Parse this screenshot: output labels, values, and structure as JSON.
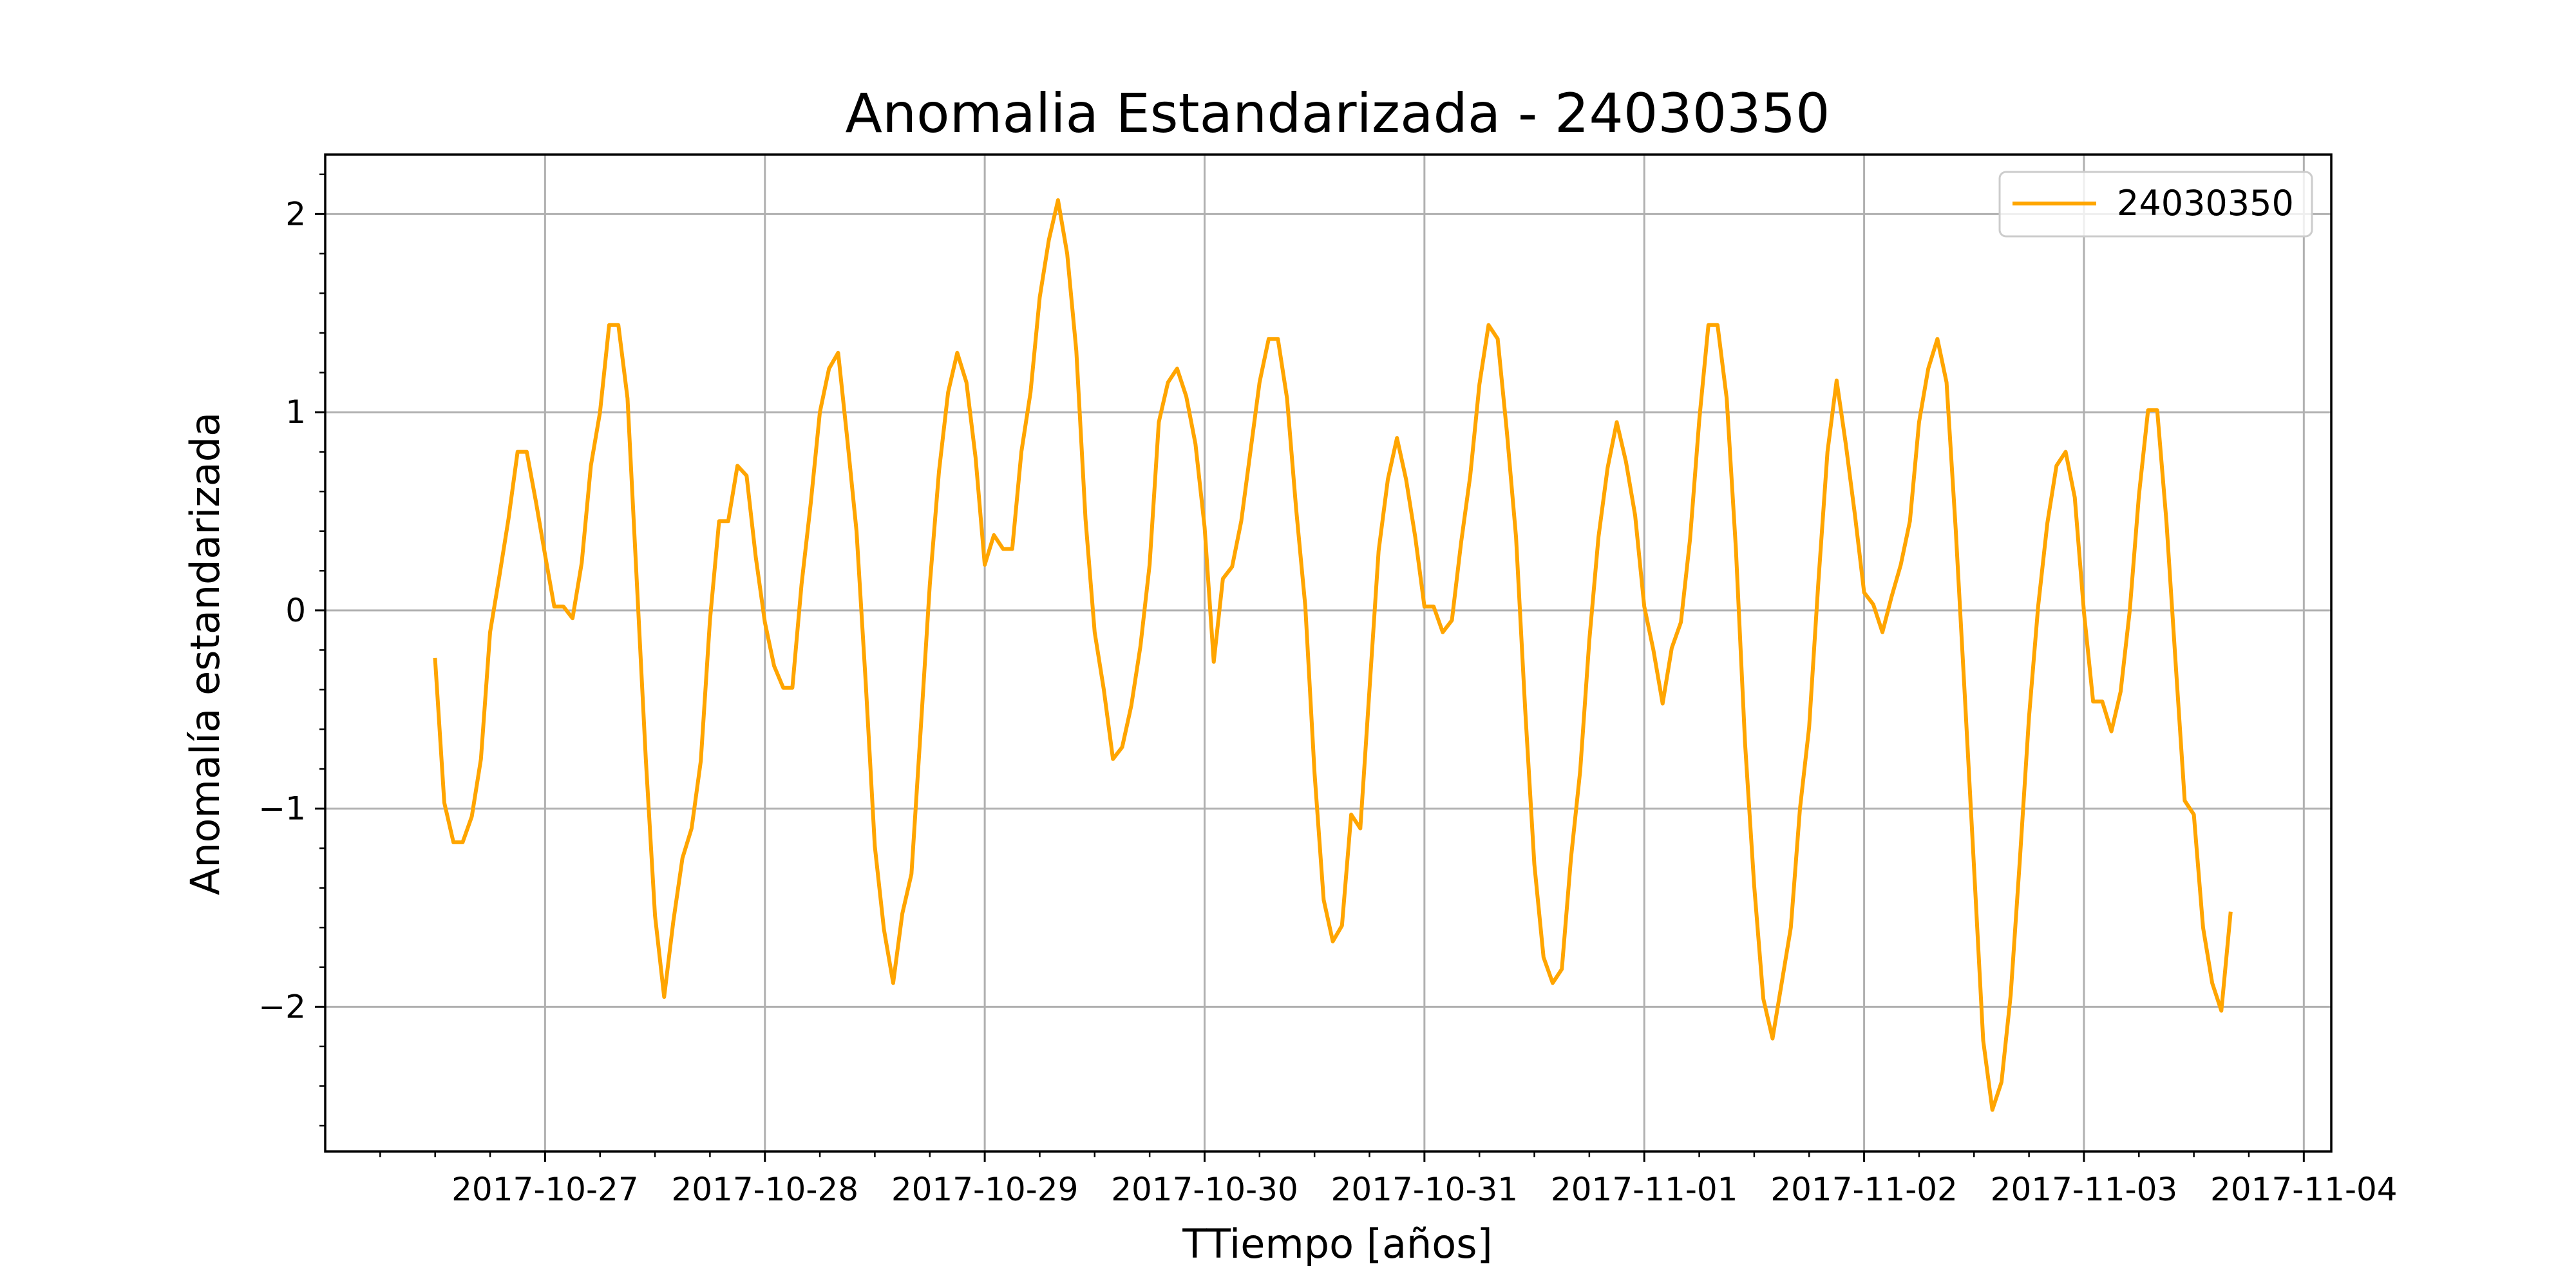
{
  "chart_data": {
    "type": "line",
    "title": "Anomalia Estandarizada - 24030350",
    "xlabel": "TTiempo [años]",
    "ylabel": "Anomalía estandarizada",
    "xlim": [
      "2017-10-26 00:00",
      "2017-11-04 03:00"
    ],
    "ylim": [
      -2.73,
      2.3
    ],
    "grid": true,
    "legend_position": "top-right",
    "x_ticks": [
      "2017-10-27",
      "2017-10-28",
      "2017-10-29",
      "2017-10-30",
      "2017-10-31",
      "2017-11-01",
      "2017-11-02",
      "2017-11-03",
      "2017-11-04"
    ],
    "y_ticks": [
      {
        "value": 2,
        "label": "2"
      },
      {
        "value": 1,
        "label": "1"
      },
      {
        "value": 0,
        "label": "0"
      },
      {
        "value": -1,
        "label": "−1"
      },
      {
        "value": -2,
        "label": "−2"
      }
    ],
    "series": [
      {
        "name": "24030350",
        "color": "#FFA500",
        "start": "2017-10-26 12:00",
        "step_hours": 1,
        "values": [
          -0.25,
          -0.97,
          -1.17,
          -1.17,
          -1.04,
          -0.75,
          -0.11,
          0.17,
          0.46,
          0.8,
          0.8,
          0.55,
          0.28,
          0.02,
          0.02,
          -0.04,
          0.24,
          0.73,
          1.0,
          1.44,
          1.44,
          1.07,
          0.16,
          -0.75,
          -1.54,
          -1.95,
          -1.57,
          -1.25,
          -1.1,
          -0.76,
          -0.05,
          0.45,
          0.45,
          0.73,
          0.68,
          0.27,
          -0.06,
          -0.28,
          -0.39,
          -0.39,
          0.13,
          0.54,
          1.0,
          1.22,
          1.3,
          0.86,
          0.4,
          -0.36,
          -1.19,
          -1.61,
          -1.88,
          -1.53,
          -1.33,
          -0.61,
          0.13,
          0.7,
          1.1,
          1.3,
          1.15,
          0.77,
          0.23,
          0.38,
          0.31,
          0.31,
          0.8,
          1.1,
          1.58,
          1.87,
          2.07,
          1.8,
          1.31,
          0.46,
          -0.11,
          -0.4,
          -0.75,
          -0.69,
          -0.48,
          -0.18,
          0.23,
          0.95,
          1.15,
          1.22,
          1.08,
          0.84,
          0.42,
          -0.26,
          0.16,
          0.22,
          0.45,
          0.8,
          1.15,
          1.37,
          1.37,
          1.07,
          0.51,
          0.02,
          -0.82,
          -1.46,
          -1.67,
          -1.59,
          -1.03,
          -1.1,
          -0.4,
          0.3,
          0.66,
          0.87,
          0.66,
          0.37,
          0.02,
          0.02,
          -0.11,
          -0.05,
          0.34,
          0.68,
          1.14,
          1.44,
          1.37,
          0.9,
          0.37,
          -0.5,
          -1.28,
          -1.75,
          -1.88,
          -1.81,
          -1.25,
          -0.81,
          -0.15,
          0.37,
          0.72,
          0.95,
          0.75,
          0.48,
          0.02,
          -0.2,
          -0.47,
          -0.19,
          -0.06,
          0.36,
          0.96,
          1.44,
          1.44,
          1.07,
          0.31,
          -0.67,
          -1.39,
          -1.96,
          -2.16,
          -1.88,
          -1.6,
          -1.0,
          -0.59,
          0.14,
          0.8,
          1.16,
          0.84,
          0.48,
          0.09,
          0.03,
          -0.11,
          0.07,
          0.23,
          0.45,
          0.95,
          1.22,
          1.37,
          1.15,
          0.41,
          -0.44,
          -1.3,
          -2.17,
          -2.52,
          -2.38,
          -1.94,
          -1.26,
          -0.54,
          0.02,
          0.44,
          0.73,
          0.8,
          0.57,
          -0.01,
          -0.46,
          -0.46,
          -0.61,
          -0.41,
          0.0,
          0.58,
          1.01,
          1.01,
          0.45,
          -0.26,
          -0.96,
          -1.03,
          -1.6,
          -1.88,
          -2.02,
          -1.53
        ]
      }
    ]
  }
}
